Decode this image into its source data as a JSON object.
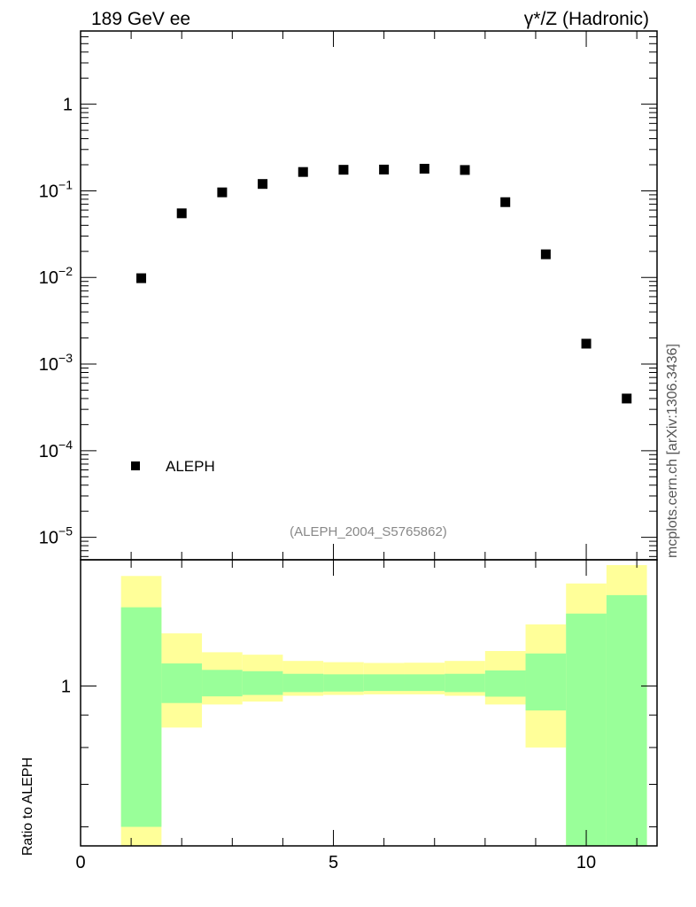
{
  "header": {
    "left": "189 GeV ee",
    "right": "γ*/Z (Hadronic)"
  },
  "side_label": "mcplots.cern.ch [arXiv:1306.3436]",
  "chart_data": [
    {
      "type": "scatter",
      "title": "",
      "xlabel": "",
      "ylabel": "",
      "y_scale": "log",
      "xlim": [
        0,
        11.4
      ],
      "ylim": [
        5.5e-06,
        7
      ],
      "y_ticks": [
        {
          "value": 1e-05,
          "mantissa": "10",
          "exponent": "−5"
        },
        {
          "value": 0.0001,
          "mantissa": "10",
          "exponent": "−4"
        },
        {
          "value": 0.001,
          "mantissa": "10",
          "exponent": "−3"
        },
        {
          "value": 0.01,
          "mantissa": "10",
          "exponent": "−2"
        },
        {
          "value": 0.1,
          "mantissa": "10",
          "exponent": "−1"
        },
        {
          "value": 1,
          "mantissa": "1",
          "exponent": ""
        }
      ],
      "series": [
        {
          "name": "ALEPH",
          "marker": "square",
          "color": "#000000",
          "x": [
            1.2,
            2.0,
            2.8,
            3.6,
            4.4,
            5.2,
            6.0,
            6.8,
            7.6,
            8.4,
            9.2,
            10.0,
            10.8
          ],
          "y": [
            0.0098,
            0.055,
            0.096,
            0.12,
            0.165,
            0.175,
            0.176,
            0.18,
            0.174,
            0.074,
            0.0185,
            0.00172,
            0.0004
          ]
        }
      ],
      "legend_position": "bottom-left",
      "annotation": "(ALEPH_2004_S5765862)"
    },
    {
      "type": "area",
      "title": "",
      "xlabel": "",
      "ylabel": "Ratio to ALEPH",
      "y_scale": "log",
      "xlim": [
        0,
        11.4
      ],
      "ylim": [
        0.56,
        1.58
      ],
      "y_ticks": [
        {
          "value": 1,
          "label": "1"
        }
      ],
      "x_ticks": [
        {
          "value": 0,
          "label": "0"
        },
        {
          "value": 5,
          "label": "5"
        },
        {
          "value": 10,
          "label": "10"
        }
      ],
      "bins": [
        [
          0.8,
          1.6
        ],
        [
          1.6,
          2.4
        ],
        [
          2.4,
          3.2
        ],
        [
          3.2,
          4.0
        ],
        [
          4.0,
          4.8
        ],
        [
          4.8,
          5.6
        ],
        [
          5.6,
          6.4
        ],
        [
          6.4,
          7.2
        ],
        [
          7.2,
          8.0
        ],
        [
          8.0,
          8.8
        ],
        [
          8.8,
          9.6
        ],
        [
          9.6,
          10.4
        ],
        [
          10.4,
          11.2
        ]
      ],
      "series": [
        {
          "name": "",
          "color": "#ffff99",
          "low": [
            0.56,
            0.86,
            0.935,
            0.945,
            0.965,
            0.968,
            0.97,
            0.97,
            0.965,
            0.935,
            0.8,
            0.56,
            0.56
          ],
          "high": [
            1.49,
            1.21,
            1.13,
            1.12,
            1.095,
            1.09,
            1.087,
            1.088,
            1.095,
            1.135,
            1.25,
            1.45,
            1.55
          ]
        },
        {
          "name": "",
          "color": "#99ff99",
          "low": [
            0.6,
            0.94,
            0.963,
            0.968,
            0.978,
            0.98,
            0.982,
            0.982,
            0.978,
            0.962,
            0.915,
            0.56,
            0.56
          ],
          "high": [
            1.33,
            1.085,
            1.06,
            1.055,
            1.045,
            1.043,
            1.043,
            1.043,
            1.045,
            1.058,
            1.125,
            1.3,
            1.39
          ]
        }
      ]
    }
  ]
}
